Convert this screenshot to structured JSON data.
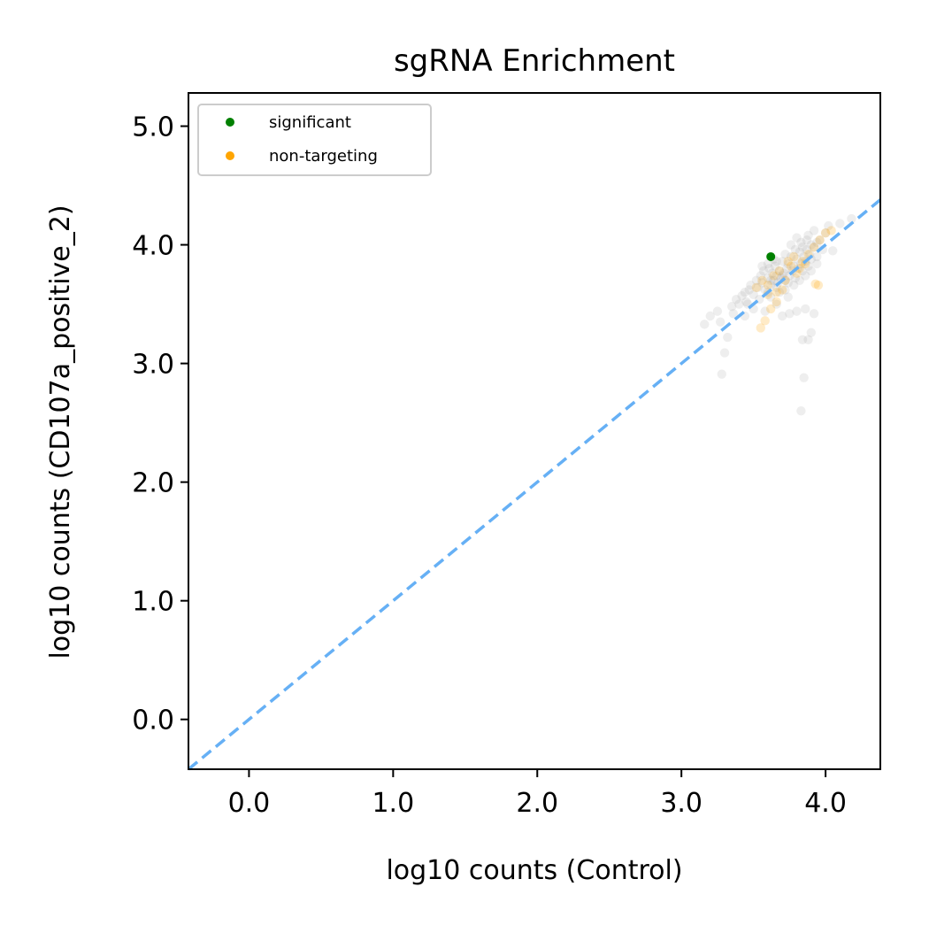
{
  "chart_data": {
    "type": "scatter",
    "title": "sgRNA Enrichment",
    "xlabel": "log10 counts (Control)",
    "ylabel": "log10 counts (CD107a_positive_2)",
    "xlim": [
      -0.42,
      4.38
    ],
    "ylim": [
      -0.42,
      5.28
    ],
    "x_ticks": [
      0.0,
      1.0,
      2.0,
      3.0,
      4.0
    ],
    "x_tick_labels": [
      "0.0",
      "1.0",
      "2.0",
      "3.0",
      "4.0"
    ],
    "y_ticks": [
      0.0,
      1.0,
      2.0,
      3.0,
      4.0,
      5.0
    ],
    "y_tick_labels": [
      "0.0",
      "1.0",
      "2.0",
      "3.0",
      "4.0",
      "5.0"
    ],
    "grid": false,
    "legend_position": "top-left",
    "diagonal_reference_line": {
      "style": "dashed",
      "color": "#66b0f5",
      "slope": 1,
      "intercept": 0
    },
    "series": [
      {
        "name": "",
        "color": "#9e9e9e",
        "opacity": 0.18,
        "points": [
          [
            3.16,
            3.33
          ],
          [
            3.2,
            3.4
          ],
          [
            3.25,
            3.44
          ],
          [
            3.27,
            3.35
          ],
          [
            3.32,
            3.22
          ],
          [
            3.3,
            3.09
          ],
          [
            3.28,
            2.91
          ],
          [
            3.35,
            3.48
          ],
          [
            3.38,
            3.54
          ],
          [
            3.4,
            3.5
          ],
          [
            3.42,
            3.57
          ],
          [
            3.44,
            3.6
          ],
          [
            3.45,
            3.52
          ],
          [
            3.47,
            3.62
          ],
          [
            3.48,
            3.66
          ],
          [
            3.5,
            3.58
          ],
          [
            3.52,
            3.7
          ],
          [
            3.53,
            3.64
          ],
          [
            3.55,
            3.74
          ],
          [
            3.56,
            3.68
          ],
          [
            3.57,
            3.78
          ],
          [
            3.58,
            3.62
          ],
          [
            3.6,
            3.72
          ],
          [
            3.61,
            3.8
          ],
          [
            3.62,
            3.66
          ],
          [
            3.63,
            3.76
          ],
          [
            3.64,
            3.7
          ],
          [
            3.65,
            3.82
          ],
          [
            3.66,
            3.74
          ],
          [
            3.67,
            3.68
          ],
          [
            3.68,
            3.78
          ],
          [
            3.69,
            3.72
          ],
          [
            3.7,
            3.86
          ],
          [
            3.71,
            3.76
          ],
          [
            3.72,
            3.7
          ],
          [
            3.73,
            3.8
          ],
          [
            3.74,
            3.84
          ],
          [
            3.75,
            3.74
          ],
          [
            3.76,
            3.9
          ],
          [
            3.77,
            3.78
          ],
          [
            3.78,
            3.82
          ],
          [
            3.79,
            3.72
          ],
          [
            3.8,
            3.88
          ],
          [
            3.81,
            3.8
          ],
          [
            3.82,
            3.94
          ],
          [
            3.83,
            3.84
          ],
          [
            3.84,
            3.78
          ],
          [
            3.85,
            3.9
          ],
          [
            3.86,
            3.86
          ],
          [
            3.87,
            3.96
          ],
          [
            3.88,
            3.82
          ],
          [
            3.89,
            3.92
          ],
          [
            3.9,
            3.88
          ],
          [
            3.92,
            3.98
          ],
          [
            3.94,
            4.02
          ],
          [
            3.96,
            4.04
          ],
          [
            4.0,
            4.1
          ],
          [
            4.02,
            4.16
          ],
          [
            4.05,
            3.95
          ],
          [
            4.1,
            4.18
          ],
          [
            4.18,
            4.22
          ],
          [
            3.92,
            3.42
          ],
          [
            3.88,
            3.2
          ],
          [
            3.84,
            3.2
          ],
          [
            3.9,
            3.26
          ],
          [
            3.85,
            2.88
          ],
          [
            3.83,
            2.6
          ],
          [
            3.75,
            3.42
          ],
          [
            3.7,
            3.4
          ],
          [
            3.8,
            3.44
          ],
          [
            3.86,
            3.46
          ],
          [
            3.62,
            3.56
          ],
          [
            3.58,
            3.44
          ],
          [
            3.66,
            3.5
          ],
          [
            3.72,
            3.62
          ],
          [
            3.68,
            3.6
          ],
          [
            3.54,
            3.54
          ],
          [
            3.5,
            3.46
          ],
          [
            3.6,
            3.84
          ],
          [
            3.64,
            3.88
          ],
          [
            3.76,
            4.0
          ],
          [
            3.8,
            4.06
          ],
          [
            3.72,
            3.92
          ],
          [
            3.66,
            3.86
          ],
          [
            3.83,
            4.02
          ],
          [
            3.87,
            4.04
          ],
          [
            3.9,
            4.0
          ],
          [
            3.94,
            3.9
          ],
          [
            3.98,
            3.96
          ],
          [
            3.56,
            3.82
          ],
          [
            3.6,
            3.6
          ],
          [
            3.74,
            3.68
          ],
          [
            3.78,
            3.66
          ],
          [
            3.82,
            3.7
          ],
          [
            3.86,
            3.74
          ],
          [
            3.9,
            3.78
          ],
          [
            3.94,
            3.84
          ],
          [
            3.7,
            3.74
          ],
          [
            3.62,
            3.7
          ],
          [
            3.66,
            3.64
          ],
          [
            3.46,
            3.5
          ],
          [
            3.44,
            3.4
          ],
          [
            3.36,
            3.42
          ],
          [
            3.74,
            3.56
          ],
          [
            3.79,
            3.96
          ],
          [
            3.84,
            3.98
          ],
          [
            3.88,
            4.08
          ],
          [
            3.92,
            4.12
          ]
        ]
      },
      {
        "name": "non-targeting",
        "color": "#ffa500",
        "opacity": 0.22,
        "points": [
          [
            3.55,
            3.3
          ],
          [
            3.58,
            3.36
          ],
          [
            3.62,
            3.46
          ],
          [
            3.66,
            3.52
          ],
          [
            3.52,
            3.64
          ],
          [
            3.56,
            3.7
          ],
          [
            3.6,
            3.66
          ],
          [
            3.64,
            3.74
          ],
          [
            3.68,
            3.78
          ],
          [
            3.72,
            3.7
          ],
          [
            3.76,
            3.82
          ],
          [
            3.8,
            3.76
          ],
          [
            3.84,
            3.86
          ],
          [
            3.88,
            3.92
          ],
          [
            3.92,
            3.98
          ],
          [
            3.96,
            4.04
          ],
          [
            4.0,
            4.1
          ],
          [
            4.04,
            4.12
          ],
          [
            3.93,
            3.67
          ],
          [
            3.95,
            3.66
          ],
          [
            3.7,
            3.62
          ],
          [
            3.74,
            3.86
          ],
          [
            3.78,
            3.9
          ],
          [
            3.82,
            3.8
          ],
          [
            3.86,
            3.84
          ],
          [
            3.66,
            3.6
          ],
          [
            3.6,
            3.58
          ]
        ]
      },
      {
        "name": "significant",
        "color": "#008000",
        "opacity": 1,
        "points": [
          [
            3.62,
            3.9
          ]
        ]
      }
    ]
  }
}
